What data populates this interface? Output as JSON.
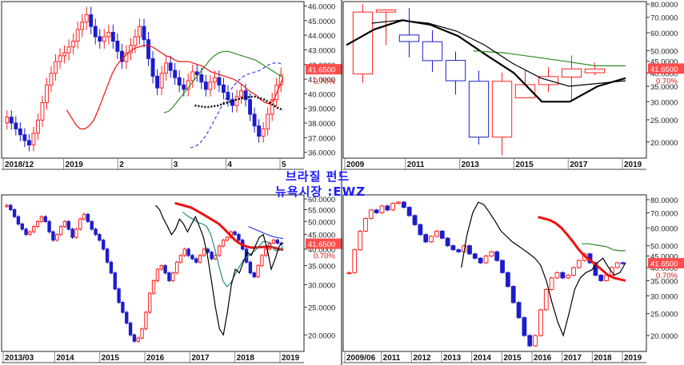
{
  "overlay": {
    "title": "브라질 펀드",
    "subtitle": "뉴욕시장 :EWZ"
  },
  "colors": {
    "up": "#ff2020",
    "down": "#1c1ccc",
    "ma_red": "#ee1111",
    "ma_green": "#2e8b22",
    "ma_blue": "#3344ee",
    "ma_black": "#000000",
    "ma_teal": "#2a8a8a",
    "price_box": "#ff4d4d"
  },
  "chart_data": [
    {
      "type": "candlestick",
      "period": "daily",
      "x_ticks": [
        "2018/12",
        "2019",
        "2",
        "3",
        "4",
        "5"
      ],
      "y_ticks": [
        "36.0000",
        "37.0000",
        "38.0000",
        "39.0000",
        "40.0000",
        "41.0000",
        "42.0000",
        "43.0000",
        "44.0000",
        "45.0000",
        "46.0000"
      ],
      "ylim": [
        35.6,
        46.3
      ],
      "last_price": "41.6500",
      "change": "0.70%",
      "series": [
        {
          "kind": "candles",
          "values": [
            38.4,
            38.0,
            37.6,
            37.2,
            36.8,
            36.5,
            37.3,
            38.2,
            39.4,
            40.6,
            41.4,
            42.2,
            42.6,
            42.8,
            43.2,
            43.6,
            44.4,
            44.9,
            45.4,
            44.6,
            43.9,
            43.6,
            43.9,
            44.2,
            43.6,
            42.9,
            42.2,
            42.8,
            43.3,
            43.9,
            44.6,
            43.7,
            42.4,
            41.2,
            40.4,
            41.4,
            42.1,
            41.6,
            41.1,
            40.6,
            40.3,
            40.9,
            41.5,
            41.3,
            40.8,
            40.3,
            40.8,
            41.1,
            40.6,
            40.1,
            39.6,
            39.2,
            39.8,
            40.2,
            39.6,
            38.6,
            37.8,
            37.1,
            37.6,
            38.6,
            39.6,
            40.6,
            41.3
          ]
        },
        {
          "kind": "line",
          "color": "ma_red",
          "values": [
            38.9,
            38.4,
            37.9,
            37.6,
            37.6,
            37.8,
            38.2,
            38.9,
            39.7,
            40.5,
            41.3,
            41.9,
            42.3,
            42.6,
            42.9,
            43.1,
            43.2,
            43.3,
            43.3,
            43.2,
            43.0,
            42.8,
            42.6,
            42.5,
            42.3,
            42.2,
            42.2,
            42.2,
            42.1,
            42.0,
            41.9,
            41.7,
            41.5,
            41.4,
            41.3,
            41.2,
            41.1,
            41.0,
            40.8,
            40.6,
            40.3,
            40.1,
            39.9,
            39.6,
            39.4,
            39.3,
            39.6,
            40.4,
            41.1
          ]
        },
        {
          "kind": "line",
          "color": "ma_green",
          "values": [
            38.7,
            38.8,
            39.1,
            39.5,
            39.9,
            40.3,
            40.7,
            41.1,
            41.5,
            41.9,
            42.3,
            42.6,
            42.8,
            42.9,
            42.9,
            42.8,
            42.7,
            42.6,
            42.5,
            42.4,
            42.3,
            42.1,
            41.9,
            41.7,
            41.5,
            41.3,
            41.1
          ]
        },
        {
          "kind": "dashed",
          "color": "ma_blue",
          "values": [
            36.3,
            36.4,
            36.6,
            37.0,
            37.5,
            38.1,
            38.7,
            39.3,
            39.9,
            40.4,
            40.8,
            41.1,
            41.3,
            41.4,
            41.5,
            41.6,
            41.8,
            42.0,
            42.1,
            42.1,
            42.0
          ]
        },
        {
          "kind": "dotted",
          "color": "ma_black",
          "values": [
            39.2,
            39.15,
            39.1,
            39.1,
            39.15,
            39.2,
            39.3,
            39.4,
            39.5,
            39.6,
            39.7,
            39.75,
            39.8,
            39.8,
            39.7,
            39.6,
            39.4,
            39.2,
            39.0,
            38.9
          ]
        }
      ]
    },
    {
      "type": "candlestick",
      "period": "yearly",
      "x_ticks": [
        "2009",
        "2011",
        "2013",
        "2015",
        "2017",
        "2019"
      ],
      "y_ticks": [
        "20.0000",
        "25.0000",
        "30.0000",
        "35.0000",
        "40.0000",
        "45.0000",
        "50.0000",
        "60.0000",
        "70.0000",
        "80.0000"
      ],
      "ylim": [
        17,
        82
      ],
      "last_price": "41.6500",
      "change": "0.70%",
      "series": [
        {
          "kind": "candles",
          "open": [
            39.6,
            73.8,
            58.6,
            54.8,
            45.4,
            36.8,
            21.0,
            31.2,
            35.6,
            38.4,
            40.1
          ],
          "close": [
            73.8,
            75.4,
            54.9,
            45.3,
            37.0,
            21.0,
            36.8,
            35.6,
            38.6,
            41.7,
            41.65
          ],
          "high": [
            79.7,
            76.0,
            76.8,
            61.5,
            49.6,
            41.0,
            40.2,
            41.2,
            42.4,
            47.7,
            44.4
          ],
          "low": [
            36.3,
            53.0,
            46.8,
            40.5,
            32.2,
            19.5,
            17.5,
            31.0,
            33.0,
            30.0,
            39.2
          ]
        },
        {
          "kind": "line",
          "color": "ma_black",
          "values": [
            53,
            62,
            68,
            65,
            58,
            48,
            40,
            30,
            30,
            35,
            38
          ]
        },
        {
          "kind": "line",
          "color": "ma_green",
          "values": [
            50,
            49,
            47,
            45,
            43,
            43
          ]
        },
        {
          "kind": "line",
          "color": "ma_black_thin",
          "values": [
            66,
            68,
            66,
            61,
            53,
            44,
            38,
            35,
            36,
            37
          ]
        }
      ]
    },
    {
      "type": "candlestick",
      "period": "weekly",
      "x_ticks": [
        "2013/03",
        "2014",
        "2015",
        "2016",
        "2017",
        "2018",
        "2019"
      ],
      "y_ticks": [
        "20.0000",
        "25.0000",
        "30.0000",
        "35.0000",
        "40.0000",
        "45.0000",
        "50.0000",
        "55.0000",
        "60.0000"
      ],
      "ylim": [
        17.5,
        62
      ],
      "last_price": "41.6500",
      "change": "0.70%",
      "series": [
        {
          "kind": "candles",
          "values": [
            57,
            55,
            52,
            49,
            47,
            45,
            46,
            48,
            50,
            52,
            50,
            46,
            43,
            45,
            48,
            50,
            47,
            44,
            47,
            51,
            53,
            50,
            47,
            45,
            43,
            40,
            36,
            33,
            29,
            26,
            24,
            22,
            20,
            19,
            19.5,
            21,
            24,
            28,
            31,
            34,
            35,
            33,
            31,
            33,
            36,
            38,
            40,
            38,
            37,
            36,
            38,
            40,
            39,
            37,
            38,
            41,
            43,
            44,
            46,
            45,
            43,
            40,
            36,
            33,
            32,
            35,
            38,
            40,
            42,
            43,
            42,
            41.7
          ]
        },
        {
          "kind": "line",
          "color": "ma_red",
          "values": [
            58,
            57.5,
            57,
            56.5,
            56,
            55,
            54,
            53,
            52,
            51,
            50,
            49,
            47.5,
            46,
            44.5,
            43,
            42,
            41.3,
            40.8,
            40.5,
            40.5,
            40.6,
            40.7,
            40.8,
            40.7,
            40.4,
            40.0,
            39.8
          ]
        },
        {
          "kind": "line",
          "color": "ma_teal",
          "values": [
            54,
            52.5,
            51.5,
            50.5,
            49.5,
            49,
            48,
            45,
            40,
            35,
            31,
            29.5,
            30.5,
            32.5,
            34.5,
            36.5,
            37.5,
            38.5,
            39.5,
            41,
            42.5,
            42.5,
            41.2,
            39.5,
            39.6,
            41
          ]
        },
        {
          "kind": "line",
          "color": "ma_blue",
          "values": [
            48,
            47.3,
            46.6,
            45.9,
            45.2,
            44.6,
            44.1,
            43.8,
            43.6
          ]
        },
        {
          "kind": "line",
          "color": "ma_black",
          "values": [
            57,
            55,
            51,
            48,
            45,
            47,
            51,
            49,
            46,
            49,
            52,
            48,
            44,
            38,
            31,
            25,
            21,
            20,
            24,
            30,
            34,
            33,
            36,
            39,
            38,
            41,
            44,
            45,
            40,
            34,
            37,
            41,
            42
          ]
        }
      ]
    },
    {
      "type": "candlestick",
      "period": "monthly",
      "x_ticks": [
        "2009/06",
        "2011",
        "2012",
        "2013",
        "2014",
        "2015",
        "2016",
        "2017",
        "2018",
        "2019"
      ],
      "y_ticks": [
        "20.0000",
        "25.0000",
        "30.0000",
        "35.0000",
        "40.0000",
        "45.0000",
        "50.0000",
        "60.0000",
        "70.0000",
        "80.0000"
      ],
      "ylim": [
        17,
        84
      ],
      "last_price": "41.6500",
      "change": "0.70%",
      "series": [
        {
          "kind": "candles",
          "values": [
            38,
            48,
            58,
            66,
            72,
            70,
            75,
            72,
            77,
            78,
            74,
            68,
            62,
            56,
            52,
            55,
            58,
            54,
            50,
            48,
            47,
            50,
            46,
            44,
            42,
            45,
            47,
            43,
            38,
            33,
            28,
            24,
            20,
            18,
            20,
            26,
            32,
            36,
            38,
            36,
            37,
            40,
            43,
            46,
            42,
            37,
            35,
            37,
            40,
            42,
            41.65
          ]
        },
        {
          "kind": "line",
          "color": "ma_red",
          "values": [
            67,
            66,
            65,
            63,
            60,
            56,
            52,
            48,
            45,
            43,
            41,
            39,
            37,
            36,
            35.5,
            35
          ]
        },
        {
          "kind": "line",
          "color": "ma_green",
          "values": [
            51,
            51,
            50.5,
            50,
            49.5,
            48,
            47.5,
            47.5
          ]
        },
        {
          "kind": "line",
          "color": "ma_black",
          "values": [
            40,
            56,
            70,
            78,
            76,
            70,
            64,
            58,
            55,
            52,
            50,
            48,
            46,
            44,
            41,
            35,
            28,
            23,
            20,
            25,
            32,
            36,
            38,
            39,
            42,
            44,
            40,
            37,
            38,
            42
          ]
        }
      ]
    }
  ]
}
